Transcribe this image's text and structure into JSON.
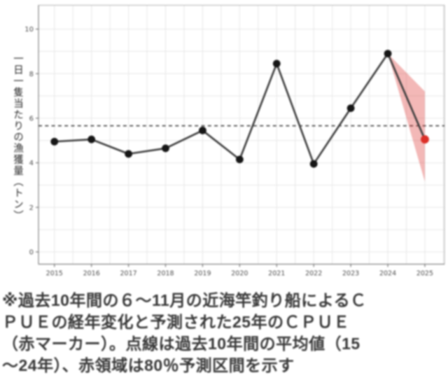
{
  "chart_data": {
    "type": "line",
    "title": "",
    "xlabel": "",
    "ylabel": "一日一隻当たりの漁獲量（トン）",
    "x_tick_labels": [
      "2015",
      "2016",
      "2017",
      "2018",
      "2019",
      "2020",
      "2021",
      "2022",
      "2023",
      "2024",
      "2025"
    ],
    "y_tick_labels": [
      "0",
      "2",
      "4",
      "6",
      "8",
      "10"
    ],
    "y_ticks": [
      0,
      2,
      4,
      6,
      8,
      10
    ],
    "xlim": [
      2014.57,
      2025.53
    ],
    "ylim": [
      -0.55,
      11.07
    ],
    "grid": "on",
    "legend": "none",
    "series": [
      {
        "name": "observed-cpue",
        "x": [
          2015,
          2016,
          2017,
          2018,
          2019,
          2020,
          2021,
          2022,
          2023,
          2024
        ],
        "y": [
          4.95,
          5.05,
          4.4,
          4.65,
          5.45,
          4.15,
          8.45,
          3.95,
          6.45,
          8.9
        ],
        "line_color": "#3d3d3d",
        "marker_color": "#161616"
      },
      {
        "name": "predicted-cpue",
        "x": [
          2025
        ],
        "y": [
          5.05
        ],
        "marker_color": "#dc2f28"
      }
    ],
    "mean_line": {
      "name": "past-10yr-average",
      "value": 5.66,
      "style": "dashed",
      "color": "#4a4a4a"
    },
    "prediction_band": {
      "name": "80pct-prediction-interval",
      "x": [
        2024,
        2025
      ],
      "upper": [
        8.9,
        7.2
      ],
      "lower": [
        8.9,
        3.15
      ],
      "fill_color": "rgba(220,53,49,0.35)"
    },
    "colors": {
      "grid": "#e7e7e7",
      "frame": "#bdbdbd",
      "spine": "#8a8a8a",
      "tick": "#777777",
      "tick_label": "#4d4d4d"
    }
  },
  "caption": {
    "full_text": "※過去10年間の６～11月の近海竿釣り船によるＣＰＵＥの経年変化と予測された25年のＣＰＵＥ（赤マーカー）。点線は過去10年間の平均値（15～24年）、赤領域は80％予測区間を示す",
    "lines": [
      "※過去10年間の６～11月の近海竿釣り船によるＣ",
      "ＰＵＥの経年変化と予測された25年のＣＰＵＥ",
      "（赤マーカー）。点線は過去10年間の平均値（15",
      "～24年）、赤領域は80％予測区間を示す"
    ]
  }
}
